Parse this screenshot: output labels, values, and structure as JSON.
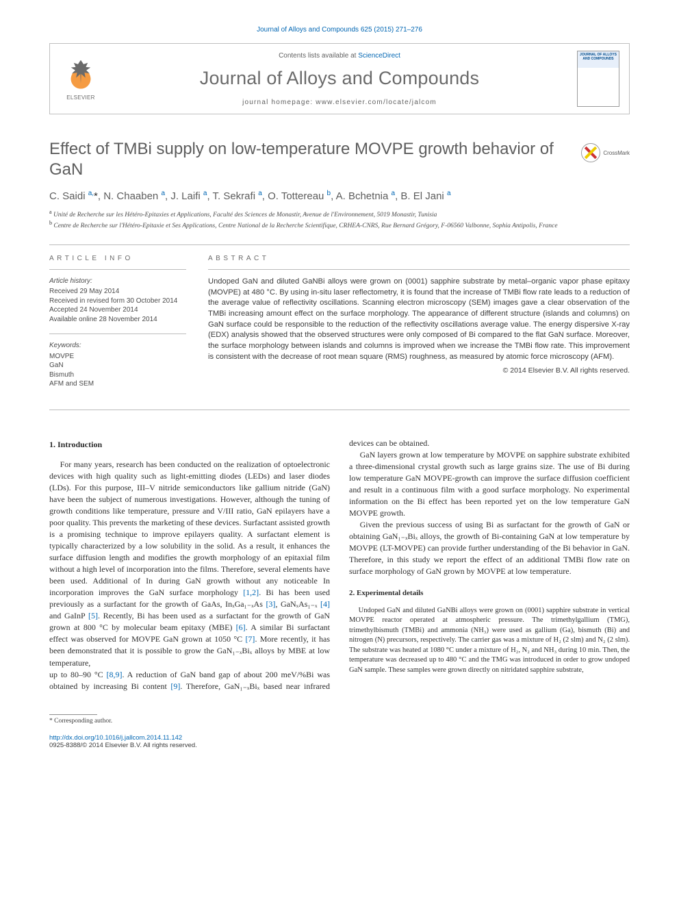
{
  "running_header": "Journal of Alloys and Compounds 625 (2015) 271–276",
  "meta_box": {
    "contents_prefix": "Contents lists available at ",
    "contents_link": "ScienceDirect",
    "journal_name": "Journal of Alloys and Compounds",
    "homepage_prefix": "journal homepage: ",
    "homepage_url": "www.elsevier.com/locate/jalcom",
    "elsevier_word": "ELSEVIER",
    "cover_title": "JOURNAL OF ALLOYS AND COMPOUNDS"
  },
  "article_title": "Effect of TMBi supply on low-temperature MOVPE growth behavior of GaN",
  "crossmark_label": "CrossMark",
  "authors_html": "C. Saidi <sup>a,</sup><span class='ast'>*</span>, N. Chaaben <sup>a</sup>, J. Laifi <sup>a</sup>, T. Sekrafi <sup>a</sup>, O. Tottereau <sup>b</sup>, A. Bchetnia <sup>a</sup>, B. El Jani <sup>a</sup>",
  "affiliations": {
    "a": "Unité de Recherche sur les Hétéro-Epitaxies et Applications, Faculté des Sciences de Monastir, Avenue de l'Environnement, 5019 Monastir, Tunisia",
    "b": "Centre de Recherche sur l'Hétéro-Epitaxie et Ses Applications, Centre National de la Recherche Scientifique, CRHEA-CNRS, Rue Bernard Grégory, F-06560 Valbonne, Sophia Antipolis, France"
  },
  "info": {
    "heading": "ARTICLE INFO",
    "history_label": "Article history:",
    "history": [
      "Received 29 May 2014",
      "Received in revised form 30 October 2014",
      "Accepted 24 November 2014",
      "Available online 28 November 2014"
    ],
    "keywords_label": "Keywords:",
    "keywords": [
      "MOVPE",
      "GaN",
      "Bismuth",
      "AFM and SEM"
    ]
  },
  "abstract": {
    "heading": "ABSTRACT",
    "text": "Undoped GaN and diluted GaNBi alloys were grown on (0001) sapphire substrate by metal–organic vapor phase epitaxy (MOVPE) at 480 °C. By using in-situ laser reflectometry, it is found that the increase of TMBi flow rate leads to a reduction of the average value of reflectivity oscillations. Scanning electron microscopy (SEM) images gave a clear observation of the TMBi increasing amount effect on the surface morphology. The appearance of different structure (islands and columns) on GaN surface could be responsible to the reduction of the reflectivity oscillations average value. The energy dispersive X-ray (EDX) analysis showed that the observed structures were only composed of Bi compared to the flat GaN surface. Moreover, the surface morphology between islands and columns is improved when we increase the TMBi flow rate. This improvement is consistent with the decrease of root mean square (RMS) roughness, as measured by atomic force microscopy (AFM).",
    "copyright": "© 2014 Elsevier B.V. All rights reserved."
  },
  "sections": {
    "intro_heading": "1. Introduction",
    "intro_p1": "For many years, research has been conducted on the realization of optoelectronic devices with high quality such as light-emitting diodes (LEDs) and laser diodes (LDs). For this purpose, III–V nitride semiconductors like gallium nitride (GaN) have been the subject of numerous investigations. However, although the tuning of growth conditions like temperature, pressure and V/III ratio, GaN epilayers have a poor quality. This prevents the marketing of these devices. Surfactant assisted growth is a promising technique to improve epilayers quality. A surfactant element is typically characterized by a low solubility in the solid. As a result, it enhances the surface diffusion length and modifies the growth morphology of an epitaxial film without a high level of incorporation into the films. Therefore, several elements have been used. Additional of In during GaN growth without any noticeable In incorporation improves the GaN surface morphology ",
    "intro_p1_tail": ". Bi has been used previously as a surfactant for the growth of GaAs, InₓGa₁₋ₓAs ",
    "intro_p1_c2": ", GaNₓAs₁₋ₓ ",
    "intro_p1_c3": " and GaInP ",
    "intro_p1_c4": ". Recently, Bi has been used as a surfactant for the growth of GaN grown at 800 °C by molecular beam epitaxy (MBE) ",
    "intro_p1_c5": ". A similar Bi surfactant effect was observed for MOVPE GaN grown at 1050 °C ",
    "intro_p1_c6": ". More recently, it has been demonstrated that it is possible to grow the GaN₁₋ₓBiₓ alloys by MBE at low temperature,",
    "intro_p2_lead": "up to 80–90 °C ",
    "intro_p2_mid": ". A reduction of GaN band gap of about 200 meV/%Bi was obtained by increasing Bi content ",
    "intro_p2_tail": ". Therefore, GaN₁₋ₓBiₓ based near infrared devices can be obtained.",
    "intro_p3": "GaN layers grown at low temperature by MOVPE on sapphire substrate exhibited a three-dimensional crystal growth such as large grains size. The use of Bi during low temperature GaN MOVPE-growth can improve the surface diffusion coefficient and result in a continuous film with a good surface morphology. No experimental information on the Bi effect has been reported yet on the low temperature GaN MOVPE growth.",
    "intro_p4": "Given the previous success of using Bi as surfactant for the growth of GaN or obtaining GaN₁₋ₓBiₓ alloys, the growth of Bi-containing GaN at low temperature by MOVPE (LT-MOVPE) can provide further understanding of the Bi behavior in GaN. Therefore, in this study we report the effect of an additional TMBi flow rate on surface morphology of GaN grown by MOVPE at low temperature.",
    "exp_heading": "2. Experimental details",
    "exp_p1": "Undoped GaN and diluted GaNBi alloys were grown on (0001) sapphire substrate in vertical MOVPE reactor operated at atmospheric pressure. The trimethylgallium (TMG), trimethylbismuth (TMBi) and ammonia (NH₃) were used as gallium (Ga), bismuth (Bi) and nitrogen (N) precursors, respectively. The carrier gas was a mixture of H₂ (2 slm) and N₂ (2 slm). The substrate was heated at 1080 °C under a mixture of H₂, N₂ and NH₃ during 10 min. Then, the temperature was decreased up to 480 °C and the TMG was introduced in order to grow undoped GaN sample. These samples were grown directly on nitridated sapphire substrate,"
  },
  "cites": {
    "c12": "[1,2]",
    "c3": "[3]",
    "c4": "[4]",
    "c5": "[5]",
    "c6": "[6]",
    "c7": "[7]",
    "c89": "[8,9]",
    "c9": "[9]"
  },
  "footer": {
    "corr": "* Corresponding author.",
    "doi": "http://dx.doi.org/10.1016/j.jallcom.2014.11.142",
    "issn_copy": "0925-8388/© 2014 Elsevier B.V. All rights reserved."
  },
  "colors": {
    "link": "#0066b3",
    "grey_text": "#6a6a6a",
    "rule": "#bcbcbc"
  }
}
